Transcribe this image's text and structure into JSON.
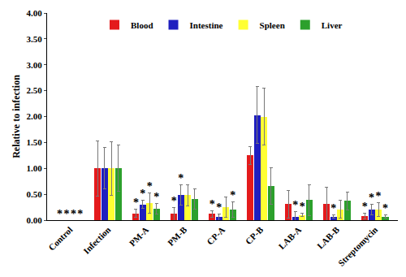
{
  "chart_data": {
    "type": "bar",
    "y_label": "Relative to infection",
    "categories": [
      "Control",
      "Infection",
      "PM-A",
      "PM-B",
      "CP-A",
      "CP-B",
      "LAB-A",
      "LAB-B",
      "Streptomycin"
    ],
    "series": [
      {
        "name": "Blood",
        "color": "#e41a1c",
        "values": [
          0,
          1,
          0.13,
          0.12,
          0.12,
          1.25,
          0.31,
          0.32,
          0.08
        ],
        "errors": [
          0,
          0.53,
          0.08,
          0.12,
          0.06,
          0.17,
          0.27,
          0.32,
          0.06
        ],
        "significance": [
          "*",
          null,
          "*",
          "*",
          "*",
          null,
          null,
          null,
          "*"
        ]
      },
      {
        "name": "Intestine",
        "color": "#1f1fbf",
        "values": [
          0,
          1,
          0.3,
          0.49,
          0.06,
          2.03,
          0.06,
          0.07,
          0.2
        ],
        "errors": [
          0,
          0.4,
          0.08,
          0.2,
          0.06,
          0.55,
          0.1,
          0.03,
          0.1
        ],
        "significance": [
          "*",
          null,
          "*",
          "*",
          "*",
          null,
          "*",
          "*",
          "*"
        ]
      },
      {
        "name": "Spleen",
        "color": "#ffff33",
        "values": [
          0,
          1,
          0.33,
          0.48,
          0.25,
          2.0,
          0.1,
          0.21,
          0.2
        ],
        "errors": [
          0,
          0.52,
          0.2,
          0.2,
          0.2,
          0.55,
          0.03,
          0.17,
          0.13
        ],
        "significance": [
          "*",
          null,
          "*",
          null,
          null,
          null,
          "*",
          null,
          "*"
        ]
      },
      {
        "name": "Liver",
        "color": "#2ca02c",
        "values": [
          0,
          1,
          0.22,
          0.41,
          0.21,
          0.66,
          0.39,
          0.37,
          0.07
        ],
        "errors": [
          0,
          0.45,
          0.1,
          0.2,
          0.15,
          0.35,
          0.3,
          0.17,
          0.03
        ],
        "significance": [
          "*",
          null,
          "*",
          null,
          "*",
          null,
          null,
          null,
          "*"
        ]
      }
    ],
    "ylim": [
      0,
      4
    ],
    "yticks": [
      {
        "value": 0,
        "label": "0.00"
      },
      {
        "value": 0.5,
        "label": "0.50"
      },
      {
        "value": 1,
        "label": "1.00"
      },
      {
        "value": 1.5,
        "label": "1.50"
      },
      {
        "value": 2,
        "label": "2.00"
      },
      {
        "value": 2.5,
        "label": "2.50"
      },
      {
        "value": 3,
        "label": "3.00"
      },
      {
        "value": 3.5,
        "label": "3.50"
      },
      {
        "value": 4,
        "label": "4.00"
      }
    ],
    "legend": "top",
    "grid": false
  }
}
